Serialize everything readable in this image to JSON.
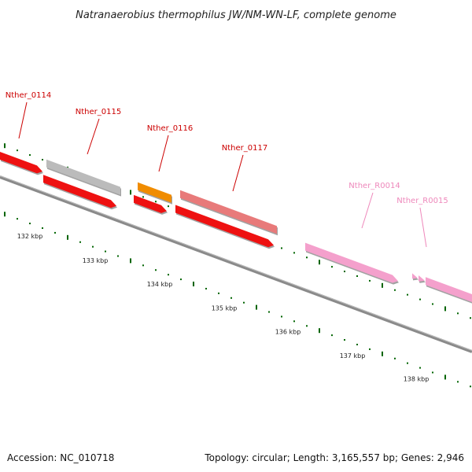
{
  "title": "Natranaerobius thermophilus JW/NM-WN-LF, complete genome",
  "footer": {
    "accession": "Accession: NC_010718",
    "summary": "Topology: circular; Length: 3,165,557 bp; Genes: 2,946"
  },
  "colors": {
    "gene_label": "#cc0000",
    "rna_label": "#ee88bb",
    "backbone": "#777777",
    "tick": "#006400"
  },
  "genes": [
    {
      "name": "Nther_0114",
      "label_color": "#cc0000"
    },
    {
      "name": "Nther_0115",
      "label_color": "#cc0000"
    },
    {
      "name": "Nther_0116",
      "label_color": "#cc0000"
    },
    {
      "name": "Nther_0117",
      "label_color": "#cc0000"
    },
    {
      "name": "Nther_R0014",
      "label_color": "#ee88bb"
    },
    {
      "name": "Nther_R0015",
      "label_color": "#ee88bb"
    }
  ],
  "scale": {
    "unit": "kbp",
    "ticks": [
      "132 kbp",
      "133 kbp",
      "134 kbp",
      "135 kbp",
      "136 kbp",
      "137 kbp",
      "138 kbp"
    ]
  },
  "features": [
    {
      "type": "cds",
      "color": "#ee1111"
    },
    {
      "type": "cds",
      "color": "#bbbbbb"
    },
    {
      "type": "cds",
      "color": "#ee1111"
    },
    {
      "type": "cds",
      "color": "#f08c00"
    },
    {
      "type": "cds",
      "color": "#ee1111"
    },
    {
      "type": "cds",
      "color": "#e87a7a"
    },
    {
      "type": "cds",
      "color": "#ee1111"
    },
    {
      "type": "rna",
      "color": "#f4a0cc"
    },
    {
      "type": "rna",
      "color": "#f4a0cc"
    },
    {
      "type": "rna",
      "color": "#f4a0cc"
    },
    {
      "type": "rna",
      "color": "#f4a0cc"
    }
  ]
}
